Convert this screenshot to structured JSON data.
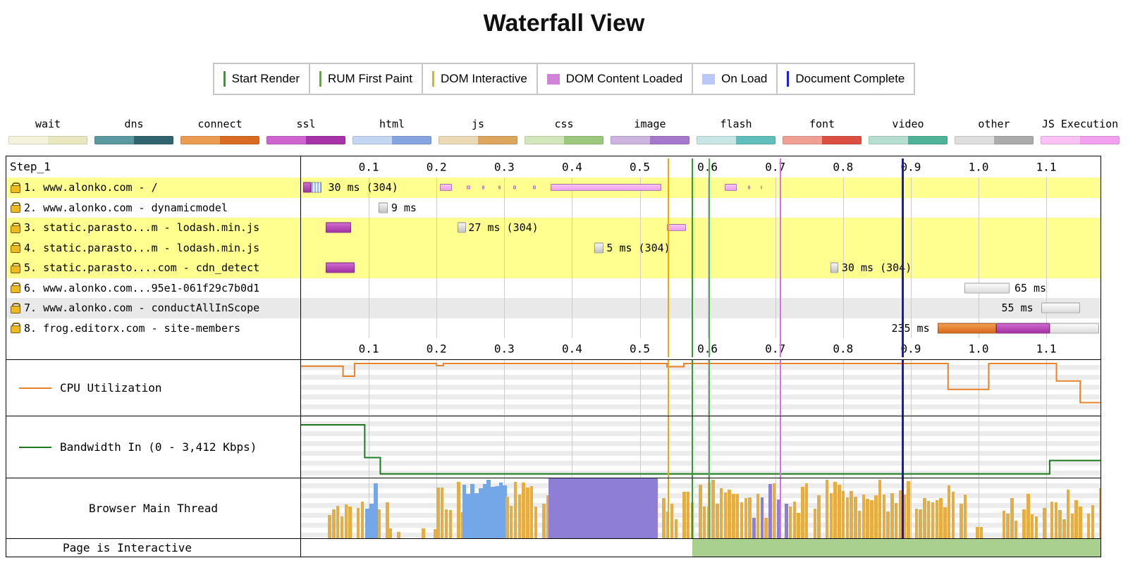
{
  "title": "Waterfall View",
  "legend": {
    "items": [
      {
        "label": "Start Render",
        "marker": "line",
        "color": "#28a428"
      },
      {
        "label": "RUM First Paint",
        "marker": "line",
        "color": "#55b12e"
      },
      {
        "label": "DOM Interactive",
        "marker": "line",
        "color": "#dfb317"
      },
      {
        "label": "DOM Content Loaded",
        "marker": "bar",
        "color": "#d183d9"
      },
      {
        "label": "On Load",
        "marker": "bar",
        "color": "#b9c8f7"
      },
      {
        "label": "Document Complete",
        "marker": "line",
        "color": "#1d1de0"
      }
    ]
  },
  "resource_legend": {
    "items": [
      {
        "label": "wait",
        "colors": [
          "#f4f3dc",
          "#e9e7c0"
        ]
      },
      {
        "label": "dns",
        "colors": [
          "#5a99a2",
          "#31646c"
        ]
      },
      {
        "label": "connect",
        "colors": [
          "#ec9b52",
          "#d96b22"
        ]
      },
      {
        "label": "ssl",
        "colors": [
          "#cf63cf",
          "#a832a8"
        ]
      },
      {
        "label": "html",
        "colors": [
          "#c3d7f2",
          "#86a4e0"
        ]
      },
      {
        "label": "js",
        "colors": [
          "#ecd9b6",
          "#dda65e"
        ]
      },
      {
        "label": "css",
        "colors": [
          "#d3e6bb",
          "#9cc87e"
        ]
      },
      {
        "label": "image",
        "colors": [
          "#cdb3e0",
          "#a678cc"
        ]
      },
      {
        "label": "flash",
        "colors": [
          "#c9e6e6",
          "#62bdbd"
        ]
      },
      {
        "label": "font",
        "colors": [
          "#efa093",
          "#da4f41"
        ]
      },
      {
        "label": "video",
        "colors": [
          "#b6dfd2",
          "#4fb39a"
        ]
      },
      {
        "label": "other",
        "colors": [
          "#dedede",
          "#ababab"
        ]
      },
      {
        "label": "JS Execution",
        "colors": [
          "#fbc2f6",
          "#f3a1ef"
        ]
      }
    ]
  },
  "chart_data": {
    "type": "waterfall",
    "step_label": "Step_1",
    "time_max": 1.18,
    "ticks": [
      "0.1",
      "0.2",
      "0.3",
      "0.4",
      "0.5",
      "0.6",
      "0.7",
      "0.8",
      "0.9",
      "1.0",
      "1.1"
    ],
    "tick_values": [
      0.1,
      0.2,
      0.3,
      0.4,
      0.5,
      0.6,
      0.7,
      0.8,
      0.9,
      1.0,
      1.1
    ],
    "markers": [
      {
        "name": "dom-interactive",
        "t": 0.542,
        "color": "#e3ac10",
        "w": 2
      },
      {
        "name": "start-render",
        "t": 0.578,
        "color": "#2f9e2f",
        "w": 2
      },
      {
        "name": "rum-first-paint",
        "t": 0.602,
        "color": "#53b153",
        "w": 2
      },
      {
        "name": "dom-content-loaded",
        "t": 0.708,
        "color": "#d473e8",
        "w": 2
      },
      {
        "name": "document-complete",
        "t": 0.888,
        "color": "#1616d9",
        "w": 3
      }
    ],
    "bar_palette": {
      "ssl": [
        "#d06ad0",
        "#a332a3"
      ],
      "connect": [
        "#efa050",
        "#d9681f"
      ],
      "gray": [
        "#f5f5f5",
        "#c2c2c2"
      ],
      "wait": [
        "#fbfbfb",
        "#dcdcdc"
      ],
      "jsexec": [
        "#f9c4f5",
        "#ef9fec"
      ],
      "htmlstripe": [
        "#9ab8ec",
        "#e8f0fc"
      ]
    },
    "rows": [
      {
        "label": "1. www.alonko.com - /",
        "bg": "#ffff8f",
        "bars": [
          {
            "t0": 0.003,
            "t1": 0.015,
            "type": "ssl"
          },
          {
            "t0": 0.015,
            "t1": 0.03,
            "type": "htmlstripe"
          },
          {
            "t0": 0.205,
            "t1": 0.223,
            "type": "jsexec",
            "h": 10
          },
          {
            "t0": 0.245,
            "t1": 0.25,
            "type": "jsexec",
            "h": 5
          },
          {
            "t0": 0.267,
            "t1": 0.271,
            "type": "jsexec",
            "h": 5
          },
          {
            "t0": 0.291,
            "t1": 0.295,
            "type": "jsexec",
            "h": 5
          },
          {
            "t0": 0.313,
            "t1": 0.317,
            "type": "jsexec",
            "h": 5
          },
          {
            "t0": 0.342,
            "t1": 0.346,
            "type": "jsexec",
            "h": 5
          },
          {
            "t0": 0.368,
            "t1": 0.532,
            "type": "jsexec",
            "h": 10
          },
          {
            "t0": 0.625,
            "t1": 0.643,
            "type": "jsexec",
            "h": 10
          },
          {
            "t0": 0.66,
            "t1": 0.663,
            "type": "jsexec",
            "h": 5
          },
          {
            "t0": 0.678,
            "t1": 0.681,
            "type": "jsexec",
            "h": 5
          }
        ],
        "texts": [
          {
            "t": 0.04,
            "text": "30 ms (304)"
          }
        ]
      },
      {
        "label": "2. www.alonko.com - dynamicmodel",
        "bg": "#ffffff",
        "bars": [
          {
            "t0": 0.114,
            "t1": 0.128,
            "type": "gray"
          }
        ],
        "texts": [
          {
            "t": 0.133,
            "text": "9 ms"
          }
        ]
      },
      {
        "label": "3. static.parasto...m - lodash.min.js",
        "bg": "#ffff8f",
        "bars": [
          {
            "t0": 0.036,
            "t1": 0.074,
            "type": "ssl"
          },
          {
            "t0": 0.231,
            "t1": 0.243,
            "type": "gray"
          },
          {
            "t0": 0.54,
            "t1": 0.568,
            "type": "jsexec",
            "h": 10
          }
        ],
        "texts": [
          {
            "t": 0.247,
            "text": "27 ms (304)"
          }
        ]
      },
      {
        "label": "4. static.parasto...m - lodash.min.js",
        "bg": "#ffff8f",
        "bars": [
          {
            "t0": 0.433,
            "t1": 0.446,
            "type": "gray"
          }
        ],
        "texts": [
          {
            "t": 0.451,
            "text": "5 ms (304)"
          }
        ]
      },
      {
        "label": "5. static.parasto....com - cdn_detect",
        "bg": "#ffff8f",
        "bars": [
          {
            "t0": 0.036,
            "t1": 0.079,
            "type": "ssl"
          },
          {
            "t0": 0.781,
            "t1": 0.793,
            "type": "gray"
          }
        ],
        "texts": [
          {
            "t": 0.798,
            "text": "30 ms (304)"
          }
        ]
      },
      {
        "label": "6. www.alonko.com...95e1-061f29c7b0d1",
        "bg": "#ffffff",
        "bars": [
          {
            "t0": 0.979,
            "t1": 1.046,
            "type": "wait"
          }
        ],
        "texts": [
          {
            "t": 1.053,
            "text": "65 ms"
          }
        ]
      },
      {
        "label": "7. www.alonko.com - conductAllInScope",
        "bg": "#e9e9e9",
        "bars": [
          {
            "t0": 1.093,
            "t1": 1.15,
            "type": "wait"
          }
        ],
        "texts": [
          {
            "t": 1.086,
            "text": "55 ms",
            "anchor": "end"
          }
        ]
      },
      {
        "label": "8. frog.editorx.com - site-members",
        "bg": "#ffffff",
        "bars": [
          {
            "t0": 0.94,
            "t1": 1.026,
            "type": "connect"
          },
          {
            "t0": 1.026,
            "t1": 1.105,
            "type": "ssl"
          },
          {
            "t0": 1.105,
            "t1": 1.178,
            "type": "wait"
          }
        ],
        "texts": [
          {
            "t": 0.933,
            "text": "235 ms",
            "anchor": "end"
          }
        ]
      }
    ],
    "cpu": {
      "type": "line",
      "label": "CPU Utilization",
      "color": "#e8822a",
      "ylim": [
        0,
        100
      ],
      "points": [
        [
          0,
          91
        ],
        [
          0.062,
          91
        ],
        [
          0.062,
          72
        ],
        [
          0.079,
          72
        ],
        [
          0.079,
          96
        ],
        [
          0.2,
          96
        ],
        [
          0.2,
          92
        ],
        [
          0.21,
          92
        ],
        [
          0.21,
          96
        ],
        [
          0.54,
          96
        ],
        [
          0.54,
          90
        ],
        [
          0.565,
          90
        ],
        [
          0.565,
          96
        ],
        [
          0.955,
          96
        ],
        [
          0.955,
          47
        ],
        [
          1.015,
          47
        ],
        [
          1.015,
          96
        ],
        [
          1.115,
          96
        ],
        [
          1.115,
          63
        ],
        [
          1.15,
          63
        ],
        [
          1.15,
          22
        ],
        [
          1.18,
          22
        ]
      ]
    },
    "bandwidth": {
      "type": "line",
      "label": "Bandwidth In (0 - 3,412 Kbps)",
      "color": "#1e7a1e",
      "ylim": [
        0,
        3412
      ],
      "points": [
        [
          0,
          88
        ],
        [
          0.094,
          88
        ],
        [
          0.094,
          32
        ],
        [
          0.117,
          32
        ],
        [
          0.117,
          4
        ],
        [
          1.105,
          4
        ],
        [
          1.105,
          27
        ],
        [
          1.18,
          27
        ]
      ]
    },
    "main_thread": {
      "type": "histogram",
      "label": "Browser Main Thread",
      "bin_width": 0.006,
      "palette": {
        "orange": "#e5ae45",
        "blue": "#74a7e8",
        "purple": "#8f7ed6"
      },
      "regions": [
        {
          "t0": 0.04,
          "t1": 0.095,
          "color": "orange",
          "min": 25,
          "max": 95,
          "density": 0.9
        },
        {
          "t0": 0.095,
          "t1": 0.113,
          "color": "blue",
          "min": 40,
          "max": 100,
          "density": 1,
          "solid": true
        },
        {
          "t0": 0.113,
          "t1": 0.13,
          "color": "orange",
          "min": 20,
          "max": 70,
          "density": 0.85
        },
        {
          "t0": 0.13,
          "t1": 0.2,
          "color": "orange",
          "min": 4,
          "max": 22,
          "density": 0.5
        },
        {
          "t0": 0.2,
          "t1": 0.238,
          "color": "orange",
          "min": 35,
          "max": 100,
          "density": 0.9
        },
        {
          "t0": 0.238,
          "t1": 0.302,
          "color": "blue",
          "min": 70,
          "max": 100,
          "density": 1,
          "solid": true
        },
        {
          "t0": 0.302,
          "t1": 0.365,
          "color": "orange",
          "min": 45,
          "max": 100,
          "density": 0.95
        },
        {
          "t0": 0.365,
          "t1": 0.527,
          "color": "purple",
          "min": 100,
          "max": 100,
          "density": 1,
          "solid": true
        },
        {
          "t0": 0.527,
          "t1": 0.6,
          "color": "orange",
          "min": 30,
          "max": 90,
          "density": 0.85
        },
        {
          "t0": 0.6,
          "t1": 0.66,
          "color": "orange",
          "min": 55,
          "max": 100,
          "density": 0.95
        },
        {
          "t0": 0.66,
          "t1": 0.72,
          "color": "mix",
          "min": 30,
          "max": 95,
          "density": 0.9
        },
        {
          "t0": 0.72,
          "t1": 0.99,
          "color": "orange",
          "min": 40,
          "max": 100,
          "density": 0.92
        },
        {
          "t0": 0.99,
          "t1": 1.035,
          "color": "orange",
          "min": 5,
          "max": 20,
          "density": 0.5
        },
        {
          "t0": 1.035,
          "t1": 1.1,
          "color": "orange",
          "min": 25,
          "max": 75,
          "density": 0.8
        },
        {
          "t0": 1.1,
          "t1": 1.18,
          "color": "orange",
          "min": 30,
          "max": 95,
          "density": 0.85
        }
      ]
    },
    "interactive": {
      "label": "Page is Interactive",
      "start": 0.578,
      "end": 1.18,
      "color": "#a9d08e"
    }
  }
}
